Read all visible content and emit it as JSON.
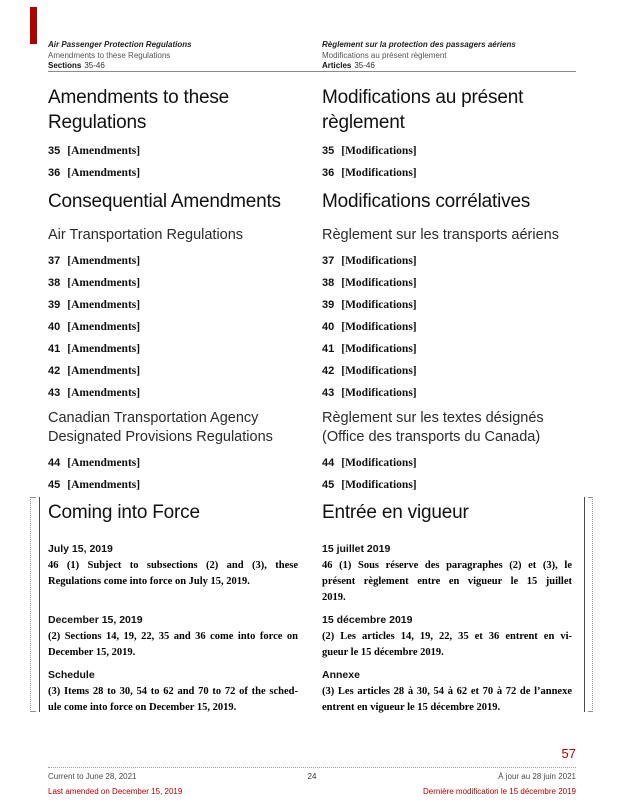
{
  "colors": {
    "accent_red": "#b30000",
    "muted_gray": "#4a4a4a",
    "rule_gray": "#8c8c8c"
  },
  "header": {
    "en": {
      "title": "Air Passenger Protection Regulations",
      "subtitle": "Amendments to these Regulations",
      "section_label": "Sections",
      "section_range": "35-46"
    },
    "fr": {
      "title": "Règlement sur la protection des passagers aériens",
      "subtitle": "Modifications au présent règlement",
      "section_label": "Articles",
      "section_range": "35-46"
    }
  },
  "toc": {
    "en": {
      "heading1": "Amendments to these Regulations",
      "items1": [
        {
          "num": "35",
          "label": "[Amendments]"
        },
        {
          "num": "36",
          "label": "[Amendments]"
        }
      ],
      "heading2": "Consequential Amendments",
      "subheading1": "Air Transportation Regulations",
      "items2": [
        {
          "num": "37",
          "label": "[Amendments]"
        },
        {
          "num": "38",
          "label": "[Amendments]"
        },
        {
          "num": "39",
          "label": "[Amendments]"
        },
        {
          "num": "40",
          "label": "[Amendments]"
        },
        {
          "num": "41",
          "label": "[Amendments]"
        },
        {
          "num": "42",
          "label": "[Amendments]"
        },
        {
          "num": "43",
          "label": "[Amendments]"
        }
      ],
      "subheading2": "Canadian Transportation Agency Designated Provisions Regulations",
      "items3": [
        {
          "num": "44",
          "label": "[Amendments]"
        },
        {
          "num": "45",
          "label": "[Amendments]"
        }
      ]
    },
    "fr": {
      "heading1": "Modifications au présent règlement",
      "items1": [
        {
          "num": "35",
          "label": "[Modifications]"
        },
        {
          "num": "36",
          "label": "[Modifications]"
        }
      ],
      "heading2": "Modifications corrélatives",
      "subheading1": "Règlement sur les transports aériens",
      "items2": [
        {
          "num": "37",
          "label": "[Modifications]"
        },
        {
          "num": "38",
          "label": "[Modifications]"
        },
        {
          "num": "39",
          "label": "[Modifications]"
        },
        {
          "num": "40",
          "label": "[Modifications]"
        },
        {
          "num": "41",
          "label": "[Modifications]"
        },
        {
          "num": "42",
          "label": "[Modifications]"
        },
        {
          "num": "43",
          "label": "[Modifications]"
        }
      ],
      "subheading2": "Règlement sur les textes désignés (Office des transports du Canada)",
      "items3": [
        {
          "num": "44",
          "label": "[Modifications]"
        },
        {
          "num": "45",
          "label": "[Modifications]"
        }
      ]
    }
  },
  "cif": {
    "en": {
      "heading": "Coming into Force",
      "blocks": [
        {
          "label": "July 15, 2019",
          "lines": [
            "46 (1) Subject to subsections (2) and (3), these",
            "Regulations come into force on July 15, 2019."
          ]
        },
        {
          "label": "December 15, 2019",
          "lines": [
            "(2) Sections 14, 19, 22, 35 and 36 come into force on",
            "December 15, 2019."
          ]
        },
        {
          "label": "Schedule",
          "lines": [
            "(3) Items 28 to 30, 54 to 62 and 70 to 72 of the sched-",
            "ule come into force on December 15, 2019."
          ]
        }
      ]
    },
    "fr": {
      "heading": "Entrée en vigueur",
      "blocks": [
        {
          "label": "15 juillet 2019",
          "lines": [
            "46 (1) Sous réserve des paragraphes (2) et (3), le",
            "présent règlement entre en vigueur le 15 juillet",
            "2019."
          ]
        },
        {
          "label": "15 décembre 2019",
          "lines": [
            "(2) Les articles 14, 19, 22, 35 et 36 entrent en vi-",
            "gueur le 15 décembre 2019."
          ]
        },
        {
          "label": "Annexe",
          "lines": [
            "(3) Les articles 28 à 30, 54 à 62 et 70 à 72 de l’annexe",
            "entrent en vigueur le 15 décembre 2019."
          ]
        }
      ]
    }
  },
  "footer": {
    "page_number_right": "57",
    "page_number_center": "24",
    "en": {
      "current_to": "Current to June 28, 2021",
      "last_amended": "Last amended on December 15, 2019"
    },
    "fr": {
      "current_to": "À jour au 28 juin 2021",
      "last_amended": "Dernière modification le 15 décembre 2019"
    }
  }
}
